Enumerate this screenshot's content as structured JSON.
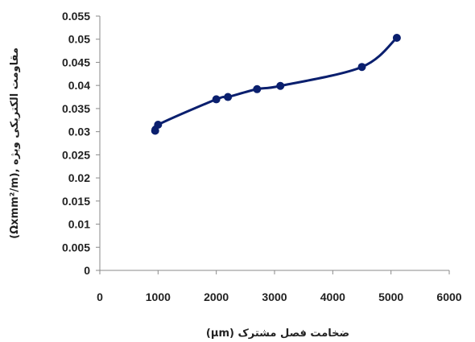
{
  "chart_data": {
    "type": "line",
    "title": "",
    "xlabel": "ضخامت فصل مشترک (μm)",
    "ylabel": "مقاومت الکتریکی ویژه ,(Ωxmm²/m)",
    "xlim": [
      0,
      6000
    ],
    "ylim": [
      0,
      0.055
    ],
    "x_ticks": [
      "0",
      "1000",
      "2000",
      "3000",
      "4000",
      "5000",
      "6000"
    ],
    "y_ticks": [
      "0",
      "0.005",
      "0.01",
      "0.015",
      "0.02",
      "0.025",
      "0.03",
      "0.035",
      "0.04",
      "0.045",
      "0.05",
      "0.055"
    ],
    "grid": false,
    "smooth": true,
    "series": [
      {
        "color": "#0a1f6e",
        "x": [
          950,
          1000,
          2000,
          2200,
          2700,
          3100,
          4500,
          5100
        ],
        "y": [
          0.0302,
          0.0315,
          0.037,
          0.0375,
          0.0392,
          0.0399,
          0.044,
          0.0503
        ]
      }
    ]
  }
}
